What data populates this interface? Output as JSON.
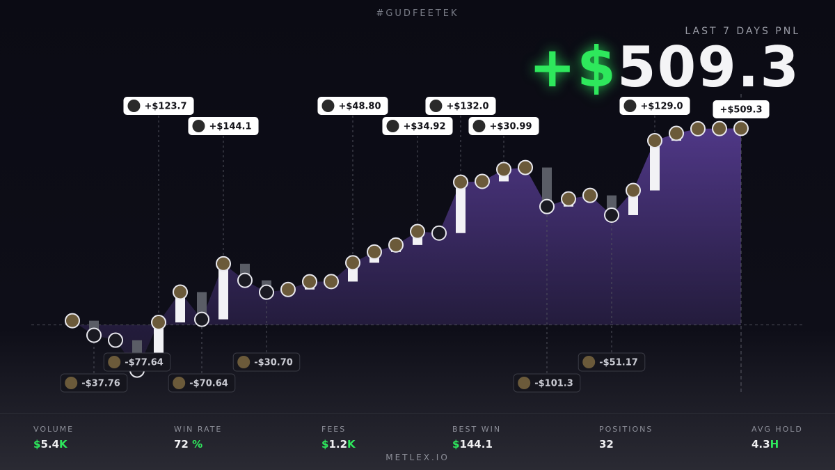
{
  "header": {
    "tag": "#GUDFEETEK",
    "subtitle": "LAST 7 DAYS PNL"
  },
  "chart_data": {
    "type": "waterfall",
    "values": [
      10.8,
      -37.76,
      -12.7,
      -77.64,
      123.7,
      78.6,
      -70.64,
      144.1,
      -43,
      -30.7,
      7,
      20,
      0.5,
      48.8,
      28,
      18,
      34.92,
      -4,
      132.0,
      2,
      30.99,
      5,
      -101.3,
      20,
      9,
      -51.17,
      64,
      129.0,
      19,
      12,
      0.5,
      0.3
    ],
    "value_labels": [
      null,
      "-$37.76",
      null,
      "-$77.64",
      "+$123.7",
      null,
      "-$70.64",
      "+$144.1",
      null,
      "-$30.70",
      null,
      null,
      null,
      "+$48.80",
      null,
      null,
      "+$34.92",
      null,
      "+$132.0",
      null,
      "+$30.99",
      null,
      "-$101.3",
      null,
      null,
      "-$51.17",
      null,
      "+$129.0",
      null,
      null,
      null,
      null
    ],
    "total": 509.3,
    "total_label": "+$509.3",
    "ylim": [
      -230,
      770
    ],
    "positive_color": "#f2f2f5",
    "negative_color": "#5a5d66",
    "area_color": "#5b3f9a",
    "accent_color": "#2ee85c"
  },
  "stats": [
    {
      "label": "VOLUME",
      "value": "$5.4K"
    },
    {
      "label": "WIN RATE",
      "value": "72 %"
    },
    {
      "label": "FEES",
      "value": "$1.2K"
    },
    {
      "label": "BEST WIN",
      "value": "$144.1"
    },
    {
      "label": "POSITIONS",
      "value": "32"
    },
    {
      "label": "AVG HOLD",
      "value": "4.3H"
    }
  ],
  "footer": {
    "site": "METLEX.IO"
  }
}
